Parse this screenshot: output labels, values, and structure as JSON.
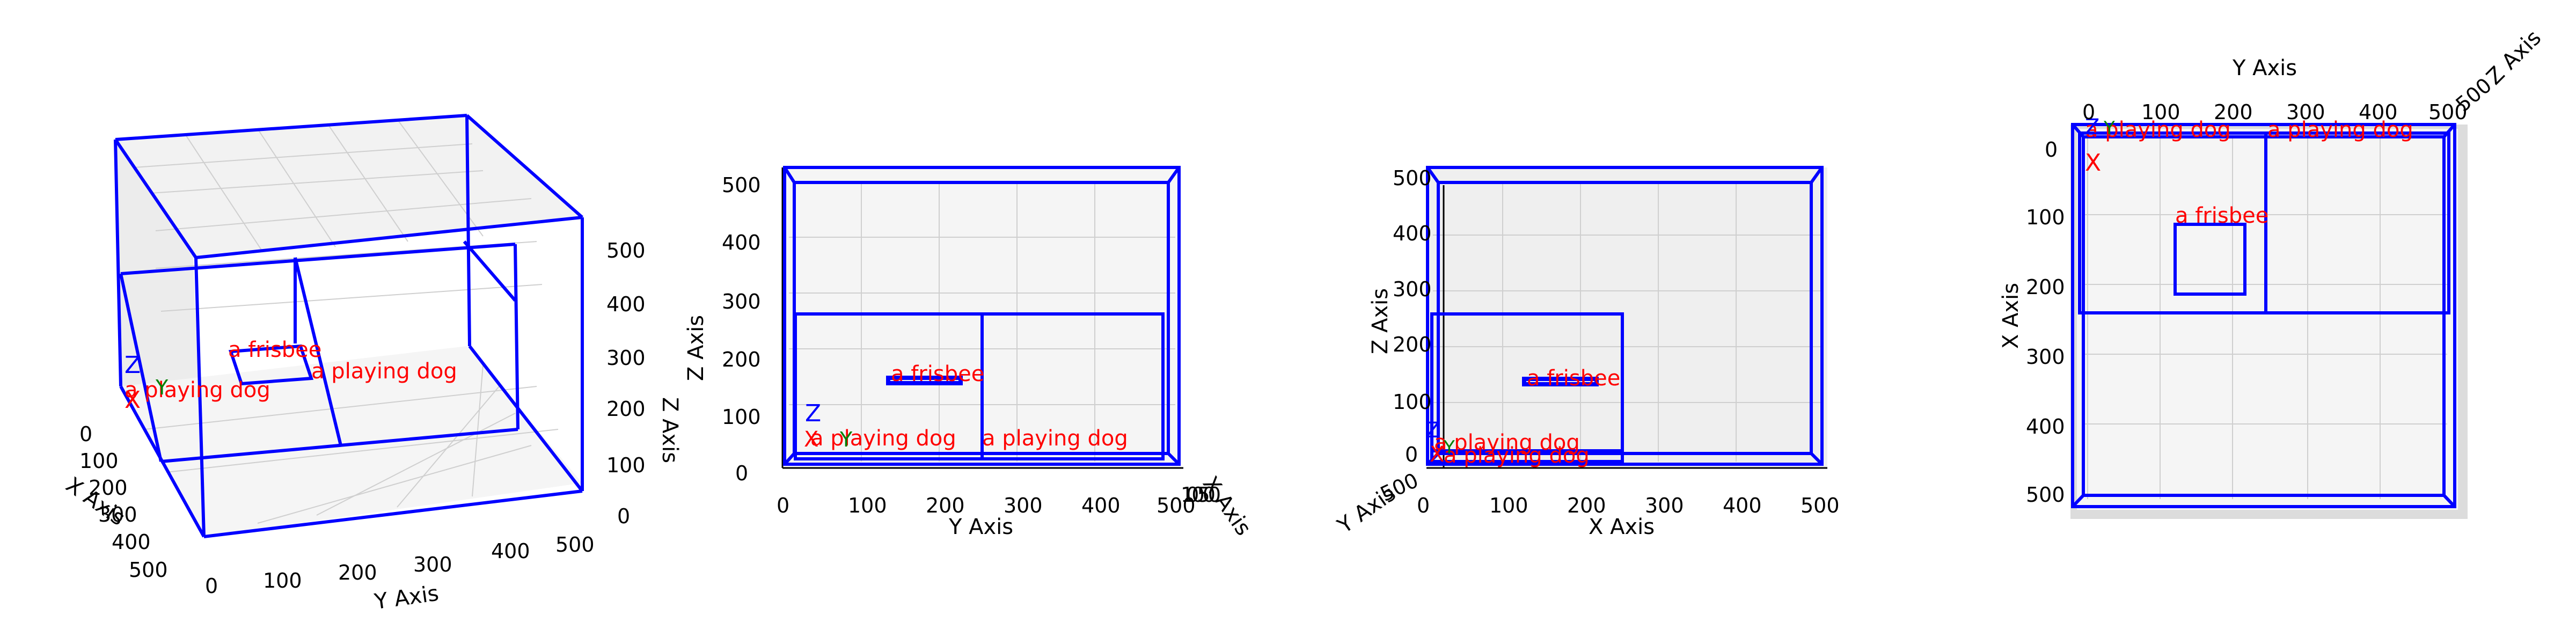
{
  "views": [
    {
      "id": "perspective",
      "axis_labels": {
        "x": "X Axis",
        "y": "Y Axis",
        "z": "Z Axis"
      },
      "x_ticks": [
        "0",
        "100",
        "200",
        "300",
        "400",
        "500"
      ],
      "y_ticks": [
        "0",
        "100",
        "200",
        "300",
        "400",
        "500"
      ],
      "z_ticks": [
        "0",
        "100",
        "200",
        "300",
        "400",
        "500"
      ],
      "labels": [
        "a frisbee",
        "a playing dog",
        "a playing dog"
      ],
      "markers": [
        "X",
        "Y",
        "Z"
      ]
    },
    {
      "id": "front-yz",
      "axis_labels": {
        "x": "X Axis",
        "y": "Y Axis",
        "z": "Z Axis"
      },
      "y_ticks": [
        "0",
        "100",
        "200",
        "300",
        "400",
        "500"
      ],
      "z_ticks": [
        "0",
        "100",
        "200",
        "300",
        "400",
        "500"
      ],
      "x_ticks_compressed": "100500",
      "labels": [
        "a frisbee",
        "a playing dog",
        "a playing dog"
      ],
      "markers": [
        "X",
        "Y",
        "Z"
      ]
    },
    {
      "id": "side-xz",
      "axis_labels": {
        "x": "X Axis",
        "y": "Y Axis",
        "z": "Z Axis"
      },
      "x_ticks": [
        "0",
        "100",
        "200",
        "300",
        "400",
        "500"
      ],
      "z_ticks": [
        "0",
        "100",
        "200",
        "300",
        "400",
        "500"
      ],
      "y_ticks_compressed": "500",
      "labels": [
        "a frisbee",
        "a playing dog",
        "a playing dog"
      ],
      "markers": [
        "X",
        "Y",
        "Z"
      ]
    },
    {
      "id": "top-xy",
      "axis_labels": {
        "x": "X Axis",
        "y": "Y Axis",
        "z": "Z Axis"
      },
      "x_ticks": [
        "0",
        "100",
        "200",
        "300",
        "400",
        "500"
      ],
      "y_ticks": [
        "0",
        "100",
        "200",
        "300",
        "400",
        "500"
      ],
      "z_ticks_compressed": "500",
      "labels": [
        "a frisbee",
        "a playing dog",
        "a playing dog"
      ],
      "markers": [
        "X",
        "Y",
        "Z"
      ]
    }
  ],
  "colors": {
    "box": "#0000ff",
    "label": "#ff0000",
    "pane": "#f2f2f2",
    "grid": "#cccccc",
    "marker_y": "#008000"
  }
}
